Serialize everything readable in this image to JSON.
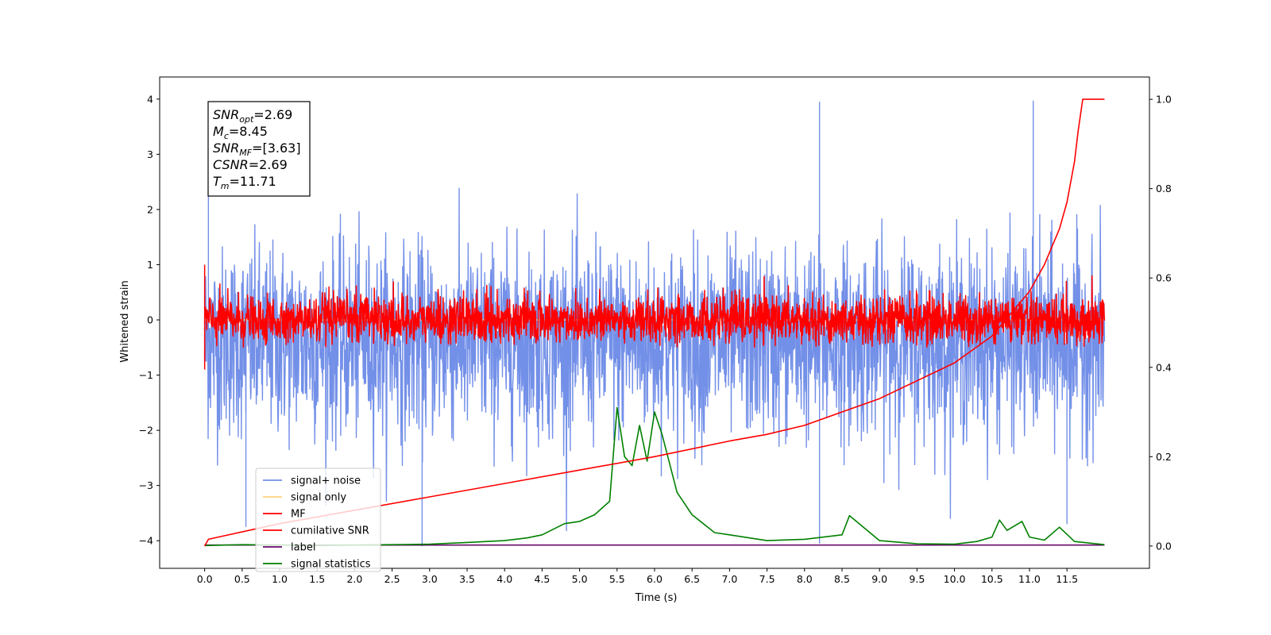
{
  "chart_data": {
    "type": "line",
    "xlabel": "Time (s)",
    "ylabel": "Whitened strain",
    "xlim": [
      -0.6,
      12.6
    ],
    "ylim": [
      -4.5,
      4.4
    ],
    "y2lim": [
      -0.05,
      1.05
    ],
    "x_ticks": [
      "0.0",
      "0.5",
      "1.0",
      "1.5",
      "2.0",
      "2.5",
      "3.0",
      "3.5",
      "4.0",
      "4.5",
      "5.0",
      "5.5",
      "6.0",
      "6.5",
      "7.0",
      "7.5",
      "8.0",
      "8.5",
      "9.0",
      "9.5",
      "10.0",
      "10.5",
      "11.0",
      "11.5"
    ],
    "y_ticks": [
      "4",
      "3",
      "2",
      "1",
      "0",
      "−1",
      "−2",
      "−3",
      "−4"
    ],
    "y2_ticks": [
      "1.0",
      "0.8",
      "0.6",
      "0.4",
      "0.2",
      "0.0"
    ],
    "annotation": [
      {
        "base": "SNR",
        "sub": "opt",
        "value": "=2.69"
      },
      {
        "base": "M",
        "sub": "c",
        "value": "=8.45"
      },
      {
        "base": "SNR",
        "sub": "MF",
        "value": "=[3.63]"
      },
      {
        "base": "CSNR",
        "sub": "",
        "value": "=2.69"
      },
      {
        "base": "T",
        "sub": "m",
        "value": "=11.71"
      }
    ],
    "legend_placement": "lower-left",
    "grid": false,
    "series": [
      {
        "name": "signal+ noise",
        "color": "#7390e8",
        "axis": "left",
        "description_values": {
          "x_range": [
            0.0,
            12.0
          ],
          "mean": -0.4,
          "typical_range": [
            -2.3,
            2.3
          ],
          "min": -4.1,
          "max": 3.97
        }
      },
      {
        "name": "signal only",
        "color": "#ffd27f",
        "axis": "left",
        "description_values": {
          "x_range": [
            0.0,
            12.0
          ],
          "constant": 0.0
        }
      },
      {
        "name": "MF",
        "color": "#ff0000",
        "axis": "left",
        "description_values": {
          "x_range": [
            0.0,
            12.0
          ],
          "mean": 0.0,
          "typical_range": [
            -0.5,
            0.8
          ]
        }
      },
      {
        "name": "cumilative SNR",
        "color": "#ff0000",
        "axis": "right",
        "x": [
          0.0,
          0.05,
          1.0,
          2.0,
          3.0,
          4.0,
          5.0,
          6.0,
          7.0,
          7.5,
          8.0,
          8.5,
          9.0,
          9.5,
          10.0,
          10.5,
          11.0,
          11.2,
          11.4,
          11.5,
          11.6,
          11.65,
          11.71,
          12.0
        ],
        "values": [
          0.0,
          0.015,
          0.05,
          0.08,
          0.11,
          0.14,
          0.17,
          0.2,
          0.235,
          0.25,
          0.27,
          0.3,
          0.33,
          0.37,
          0.41,
          0.47,
          0.57,
          0.63,
          0.71,
          0.77,
          0.86,
          0.93,
          1.0,
          1.0
        ]
      },
      {
        "name": "label",
        "color": "#6a0a6a",
        "axis": "right",
        "x": [
          0.0,
          12.0
        ],
        "values": [
          0.002,
          0.002
        ]
      },
      {
        "name": "signal statistics",
        "color": "#008000",
        "axis": "right",
        "x": [
          0.0,
          0.5,
          1.0,
          1.5,
          2.0,
          2.5,
          3.0,
          3.5,
          4.0,
          4.3,
          4.5,
          4.8,
          5.0,
          5.2,
          5.4,
          5.5,
          5.6,
          5.7,
          5.8,
          5.9,
          6.0,
          6.1,
          6.3,
          6.5,
          6.8,
          7.0,
          7.5,
          8.0,
          8.5,
          8.6,
          8.8,
          9.0,
          9.5,
          10.0,
          10.3,
          10.5,
          10.6,
          10.7,
          10.9,
          11.0,
          11.2,
          11.4,
          11.6,
          12.0
        ],
        "values": [
          0.001,
          0.003,
          0.002,
          0.001,
          0.002,
          0.003,
          0.004,
          0.008,
          0.012,
          0.018,
          0.025,
          0.05,
          0.055,
          0.07,
          0.1,
          0.31,
          0.2,
          0.18,
          0.27,
          0.19,
          0.3,
          0.25,
          0.12,
          0.07,
          0.03,
          0.025,
          0.012,
          0.015,
          0.025,
          0.068,
          0.04,
          0.012,
          0.005,
          0.004,
          0.01,
          0.02,
          0.058,
          0.035,
          0.055,
          0.02,
          0.013,
          0.042,
          0.01,
          0.003
        ]
      }
    ]
  }
}
